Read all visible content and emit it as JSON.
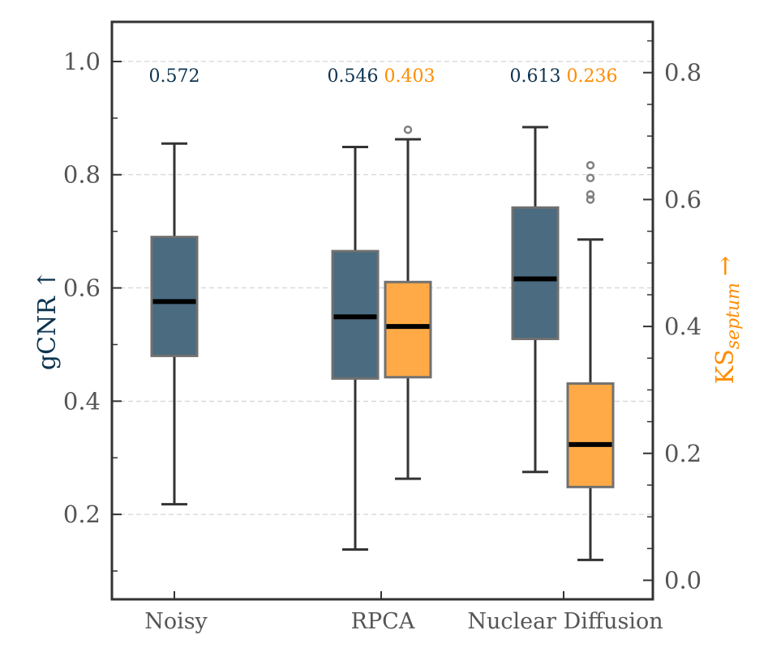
{
  "chart_data": {
    "type": "box",
    "categories": [
      "Noisy",
      "RPCA",
      "Nuclear Diffusion"
    ],
    "left_axis": {
      "label_main": "gCNR",
      "label_arrow": "↑",
      "ylim": [
        0.05,
        1.07
      ],
      "ticks": [
        0.2,
        0.4,
        0.6,
        0.8,
        1.0
      ],
      "tick_labels": [
        "0.2",
        "0.4",
        "0.6",
        "0.8",
        "1.0"
      ],
      "color": "#0d3450"
    },
    "right_axis": {
      "label_main": "KS",
      "label_sub": "septum",
      "label_arrow": "→",
      "ylim": [
        -0.03,
        0.88
      ],
      "ticks": [
        0.0,
        0.2,
        0.4,
        0.6,
        0.8
      ],
      "tick_labels": [
        "0.0",
        "0.2",
        "0.4",
        "0.6",
        "0.8"
      ],
      "color": "#ff8c00"
    },
    "grid": "horizontal dashed",
    "series": [
      {
        "name": "gCNR",
        "axis": "left",
        "fill": "#4a6b80",
        "boxes": [
          {
            "category": "Noisy",
            "whisker_low": 0.218,
            "q1": 0.48,
            "median": 0.576,
            "q3": 0.69,
            "whisker_high": 0.855,
            "outliers": []
          },
          {
            "category": "RPCA",
            "whisker_low": 0.138,
            "q1": 0.44,
            "median": 0.549,
            "q3": 0.665,
            "whisker_high": 0.849,
            "outliers": []
          },
          {
            "category": "Nuclear Diffusion",
            "whisker_low": 0.275,
            "q1": 0.51,
            "median": 0.616,
            "q3": 0.742,
            "whisker_high": 0.884,
            "outliers": []
          }
        ]
      },
      {
        "name": "KS septum",
        "axis": "right",
        "fill": "#ffaa46",
        "boxes": [
          {
            "category": "RPCA",
            "whisker_low": 0.16,
            "q1": 0.32,
            "median": 0.4,
            "q3": 0.47,
            "whisker_high": 0.695,
            "outliers": [
              0.71
            ]
          },
          {
            "category": "Nuclear Diffusion",
            "whisker_low": 0.032,
            "q1": 0.147,
            "median": 0.214,
            "q3": 0.31,
            "whisker_high": 0.537,
            "outliers": [
              0.6,
              0.608,
              0.634,
              0.654
            ]
          }
        ]
      }
    ],
    "annotations": [
      {
        "category": "Noisy",
        "values": [
          {
            "text": "0.572",
            "color": "#0d3450"
          }
        ]
      },
      {
        "category": "RPCA",
        "values": [
          {
            "text": "0.546",
            "color": "#0d3450"
          },
          {
            "text": "0.403",
            "color": "#ff8c00"
          }
        ]
      },
      {
        "category": "Nuclear Diffusion",
        "values": [
          {
            "text": "0.613",
            "color": "#0d3450"
          },
          {
            "text": "0.236",
            "color": "#ff8c00"
          }
        ]
      }
    ]
  }
}
